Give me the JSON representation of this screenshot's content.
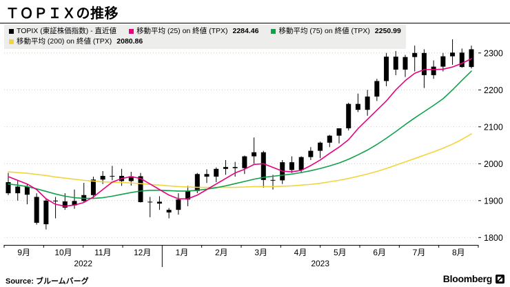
{
  "title": "ＴＯＰＩＸの推移",
  "legend": {
    "items": [
      {
        "label": "TOPIX (東証株価指数) - 直近値",
        "color": "#000000",
        "value": ""
      },
      {
        "label": "移動平均 (25)  on 終値 (TPX)",
        "color": "#e6007e",
        "value": "2284.46"
      },
      {
        "label": "移動平均 (75)  on 終値 (TPX)",
        "color": "#0fa04a",
        "value": "2250.99"
      },
      {
        "label": "移動平均 (200)  on 終値 (TPX)",
        "color": "#f2d43c",
        "value": "2080.86"
      }
    ]
  },
  "footer": {
    "source_label": "Source: ",
    "source_value": "ブルームバーグ",
    "brand": "Bloomberg"
  },
  "chart_data": {
    "type": "candlestick",
    "title": "ＴＯＰＩＸの推移",
    "ylim": [
      1780,
      2380
    ],
    "y_ticks": [
      1800,
      1900,
      2000,
      2100,
      2200,
      2300
    ],
    "x_months": [
      "9月",
      "10月",
      "11月",
      "12月",
      "1月",
      "2月",
      "3月",
      "4月",
      "5月",
      "6月",
      "7月",
      "8月"
    ],
    "years": [
      {
        "label": "2022",
        "span": [
          0,
          4
        ]
      },
      {
        "label": "2023",
        "span": [
          4,
          12
        ]
      }
    ],
    "year_divider_month": 4,
    "grid_color": "#c8c8c8",
    "candle_color": "#000000",
    "candles_note": "weekly OHLC estimated from chart, Sep 2022 - mid Aug 2023",
    "candles": [
      [
        1950,
        1975,
        1915,
        1920
      ],
      [
        1920,
        1955,
        1900,
        1938
      ],
      [
        1938,
        1945,
        1890,
        1916
      ],
      [
        1910,
        1920,
        1835,
        1840
      ],
      [
        1836,
        1906,
        1822,
        1900
      ],
      [
        1900,
        1910,
        1852,
        1898
      ],
      [
        1898,
        1920,
        1875,
        1881
      ],
      [
        1887,
        1930,
        1878,
        1899
      ],
      [
        1899,
        1948,
        1895,
        1915
      ],
      [
        1915,
        1965,
        1905,
        1957
      ],
      [
        1957,
        1980,
        1945,
        1967
      ],
      [
        1967,
        1994,
        1955,
        1967
      ],
      [
        1967,
        1986,
        1940,
        1953
      ],
      [
        1953,
        1978,
        1941,
        1966
      ],
      [
        1966,
        1975,
        1895,
        1896
      ],
      [
        1896,
        1910,
        1855,
        1897
      ],
      [
        1897,
        1912,
        1875,
        1892
      ],
      [
        1868,
        1880,
        1852,
        1875
      ],
      [
        1875,
        1920,
        1862,
        1903
      ],
      [
        1903,
        1940,
        1885,
        1926
      ],
      [
        1926,
        1975,
        1920,
        1972
      ],
      [
        1972,
        1985,
        1948,
        1965
      ],
      [
        1965,
        1990,
        1950,
        1986
      ],
      [
        1986,
        2010,
        1970,
        1991
      ],
      [
        1991,
        2005,
        1965,
        1988
      ],
      [
        1988,
        2022,
        1972,
        2020
      ],
      [
        2020,
        2071,
        2000,
        2031
      ],
      [
        2031,
        2035,
        1935,
        1956
      ],
      [
        1956,
        1970,
        1930,
        1955
      ],
      [
        1955,
        2010,
        1945,
        2004
      ],
      [
        2004,
        2020,
        1975,
        1983
      ],
      [
        1983,
        2020,
        1975,
        2018
      ],
      [
        2018,
        2045,
        2010,
        2035
      ],
      [
        2035,
        2060,
        2015,
        2057
      ],
      [
        2057,
        2078,
        2045,
        2076
      ],
      [
        2076,
        2096,
        2055,
        2096
      ],
      [
        2096,
        2165,
        2090,
        2162
      ],
      [
        2162,
        2190,
        2140,
        2146
      ],
      [
        2146,
        2200,
        2130,
        2182
      ],
      [
        2182,
        2230,
        2170,
        2224
      ],
      [
        2224,
        2300,
        2210,
        2290
      ],
      [
        2290,
        2305,
        2240,
        2255
      ],
      [
        2255,
        2295,
        2235,
        2289
      ],
      [
        2289,
        2320,
        2250,
        2300
      ],
      [
        2300,
        2310,
        2205,
        2240
      ],
      [
        2240,
        2280,
        2230,
        2263
      ],
      [
        2263,
        2300,
        2250,
        2291
      ],
      [
        2291,
        2337,
        2268,
        2301
      ],
      [
        2301,
        2312,
        2260,
        2262
      ],
      [
        2262,
        2320,
        2258,
        2310
      ]
    ],
    "series": [
      {
        "name": "移動平均 (25) on 終値 (TPX)",
        "color": "#e6007e",
        "last_value": 2284.46,
        "values": [
          1965,
          1955,
          1945,
          1930,
          1905,
          1890,
          1885,
          1888,
          1895,
          1910,
          1930,
          1950,
          1960,
          1965,
          1960,
          1945,
          1930,
          1915,
          1905,
          1905,
          1915,
          1930,
          1945,
          1960,
          1975,
          1985,
          1998,
          2000,
          1990,
          1980,
          1978,
          1982,
          1995,
          2010,
          2028,
          2045,
          2065,
          2095,
          2120,
          2145,
          2170,
          2200,
          2225,
          2245,
          2255,
          2255,
          2256,
          2262,
          2272,
          2284.46
        ]
      },
      {
        "name": "移動平均 (75) on 終値 (TPX)",
        "color": "#0fa04a",
        "last_value": 2250.99,
        "values": [
          1945,
          1942,
          1938,
          1932,
          1925,
          1918,
          1912,
          1908,
          1906,
          1906,
          1908,
          1912,
          1917,
          1922,
          1926,
          1928,
          1928,
          1927,
          1926,
          1926,
          1928,
          1931,
          1935,
          1940,
          1946,
          1952,
          1958,
          1963,
          1966,
          1969,
          1972,
          1976,
          1981,
          1987,
          1994,
          2002,
          2012,
          2024,
          2037,
          2052,
          2069,
          2087,
          2106,
          2124,
          2141,
          2158,
          2176,
          2200,
          2226,
          2250.99
        ]
      },
      {
        "name": "移動平均 (200) on 終値 (TPX)",
        "color": "#f2d43c",
        "last_value": 2080.86,
        "values": [
          1978,
          1976,
          1974,
          1971,
          1968,
          1964,
          1961,
          1958,
          1955,
          1953,
          1951,
          1950,
          1949,
          1948,
          1946,
          1944,
          1942,
          1940,
          1938,
          1937,
          1936,
          1936,
          1936,
          1936,
          1936,
          1937,
          1938,
          1938,
          1938,
          1939,
          1940,
          1942,
          1944,
          1947,
          1951,
          1955,
          1960,
          1966,
          1972,
          1979,
          1987,
          1996,
          2005,
          2014,
          2023,
          2032,
          2042,
          2053,
          2066,
          2080.86
        ]
      }
    ]
  }
}
